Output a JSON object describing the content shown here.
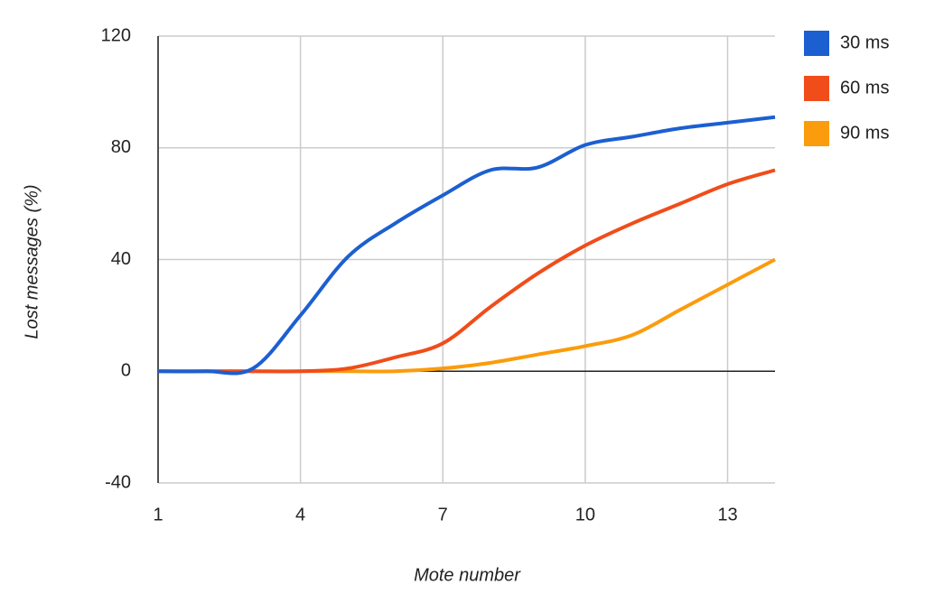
{
  "chart_data": {
    "type": "line",
    "x_label": "Mote number",
    "y_label": "Lost messages (%)",
    "x": [
      1,
      2,
      3,
      4,
      5,
      6,
      7,
      8,
      9,
      10,
      11,
      12,
      13,
      14
    ],
    "series": [
      {
        "name": "30 ms",
        "color": "#1c5fd1",
        "values": [
          0,
          0,
          1,
          20,
          41,
          53,
          63,
          72,
          73,
          81,
          84,
          87,
          89,
          91
        ]
      },
      {
        "name": "60 ms",
        "color": "#f04d1a",
        "values": [
          0,
          0,
          0,
          0,
          1,
          5,
          10,
          23,
          35,
          45,
          53,
          60,
          67,
          72
        ]
      },
      {
        "name": "90 ms",
        "color": "#fb9c0c",
        "values": [
          0,
          0,
          0,
          0,
          0,
          0,
          1,
          3,
          6,
          9,
          13,
          22,
          31,
          40
        ]
      }
    ],
    "xlim": [
      1,
      14
    ],
    "xticks": [
      1,
      4,
      7,
      10,
      13
    ],
    "ylim": [
      -40,
      120
    ],
    "yticks": [
      -40,
      0,
      40,
      80,
      120
    ],
    "grid": true,
    "legend": "right"
  }
}
